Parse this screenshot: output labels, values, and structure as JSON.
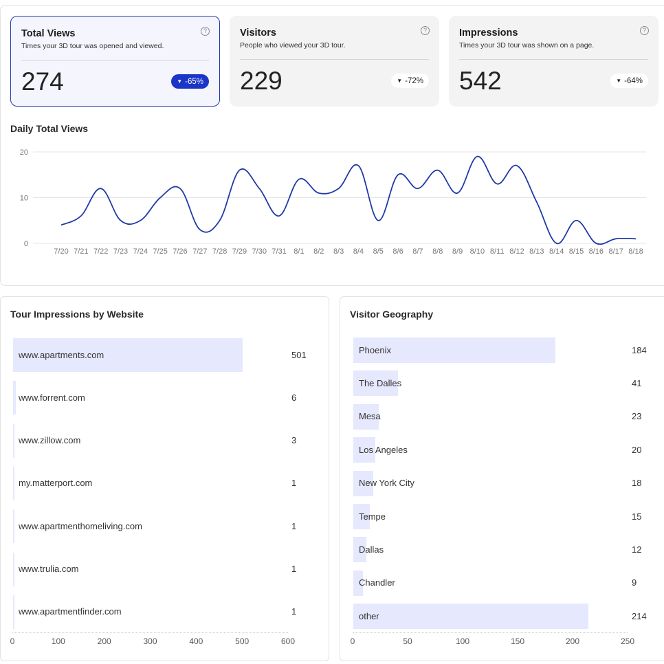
{
  "cards": [
    {
      "title": "Total Views",
      "subtitle": "Times your 3D tour was opened and viewed.",
      "value": "274",
      "change": "-65%",
      "help": "?"
    },
    {
      "title": "Visitors",
      "subtitle": "People who viewed your 3D tour.",
      "value": "229",
      "change": "-72%",
      "help": "?"
    },
    {
      "title": "Impressions",
      "subtitle": "Times your 3D tour was shown on a page.",
      "value": "542",
      "change": "-64%",
      "help": "?"
    }
  ],
  "badge_triangle": "▼",
  "colors": {
    "accent": "#1a35c7",
    "line": "#1f3aa6",
    "bar": "#e6e8fd",
    "active_card_bg": "#f4f5fd"
  },
  "daily_chart": {
    "title": "Daily Total Views",
    "chart_data": {
      "type": "line",
      "x": [
        "7/20",
        "7/21",
        "7/22",
        "7/23",
        "7/24",
        "7/25",
        "7/26",
        "7/27",
        "7/28",
        "7/29",
        "7/30",
        "7/31",
        "8/1",
        "8/2",
        "8/3",
        "8/4",
        "8/5",
        "8/6",
        "8/7",
        "8/8",
        "8/9",
        "8/10",
        "8/11",
        "8/12",
        "8/13",
        "8/14",
        "8/15",
        "8/16",
        "8/17",
        "8/18"
      ],
      "y": [
        4,
        6,
        12,
        5,
        5,
        10,
        12,
        3,
        5,
        16,
        12,
        6,
        14,
        11,
        12,
        17,
        5,
        15,
        12,
        16,
        11,
        19,
        13,
        17,
        9,
        0,
        5,
        0,
        1,
        1
      ],
      "yticks": [
        0,
        10,
        20
      ],
      "ylim": [
        0,
        20
      ],
      "grid": true
    }
  },
  "impressions": {
    "title": "Tour Impressions by Website",
    "chart_data": {
      "type": "bar",
      "orientation": "horizontal",
      "categories": [
        "www.apartments.com",
        "www.forrent.com",
        "www.zillow.com",
        "my.matterport.com",
        "www.apartmenthomeliving.com",
        "www.trulia.com",
        "www.apartmentfinder.com"
      ],
      "values": [
        501,
        6,
        3,
        1,
        1,
        1,
        1
      ],
      "xticks": [
        0,
        100,
        200,
        300,
        400,
        500,
        600
      ],
      "xlim": [
        0,
        600
      ]
    }
  },
  "geography": {
    "title": "Visitor Geography",
    "chart_data": {
      "type": "bar",
      "orientation": "horizontal",
      "categories": [
        "Phoenix",
        "The Dalles",
        "Mesa",
        "Los Angeles",
        "New York City",
        "Tempe",
        "Dallas",
        "Chandler",
        "other"
      ],
      "values": [
        184,
        41,
        23,
        20,
        18,
        15,
        12,
        9,
        214
      ],
      "xticks": [
        0,
        50,
        100,
        150,
        200,
        250
      ],
      "xlim": [
        0,
        250
      ]
    }
  }
}
